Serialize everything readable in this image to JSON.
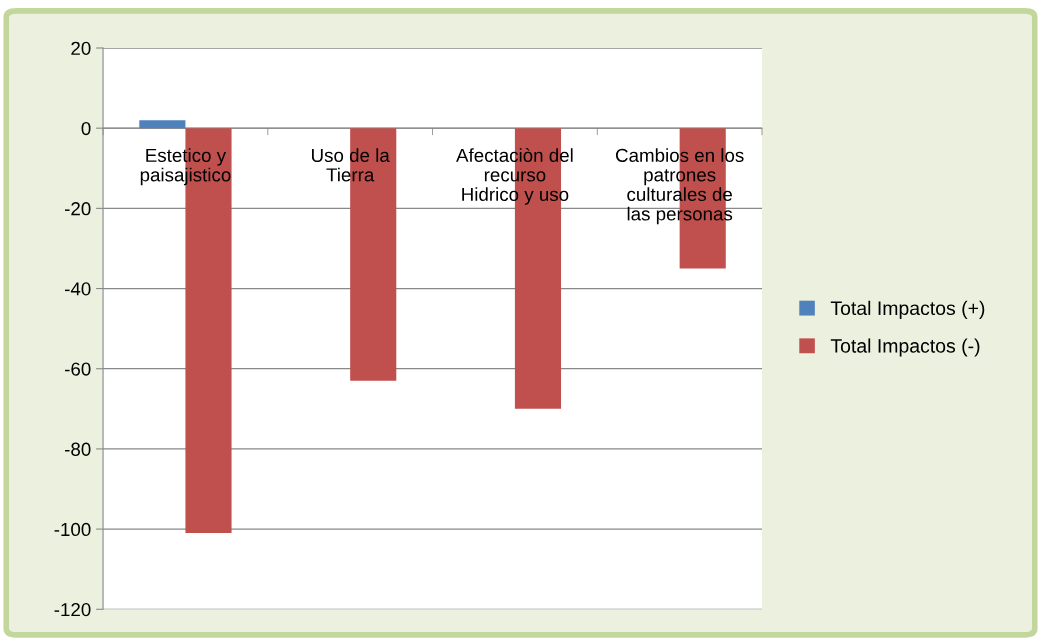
{
  "chart_data": {
    "type": "bar",
    "categories": [
      "Estetico y\npaisajistico",
      "Uso de la\nTierra",
      "Afectaciòn del\nrecurso\nHidrico y uso",
      "Cambios en los\npatrones\nculturales de\nlas personas"
    ],
    "series": [
      {
        "name": "Total Impactos (+)",
        "color": "#4f81bd",
        "values": [
          2,
          0,
          0,
          0
        ]
      },
      {
        "name": "Total Impactos (-)",
        "color": "#c0504d",
        "values": [
          -101,
          -63,
          -70,
          -35
        ]
      }
    ],
    "ylim": [
      -120,
      20
    ],
    "yticks": [
      -120,
      -100,
      -80,
      -60,
      -40,
      -20,
      0,
      20
    ],
    "grid": "y",
    "legend": "right"
  }
}
